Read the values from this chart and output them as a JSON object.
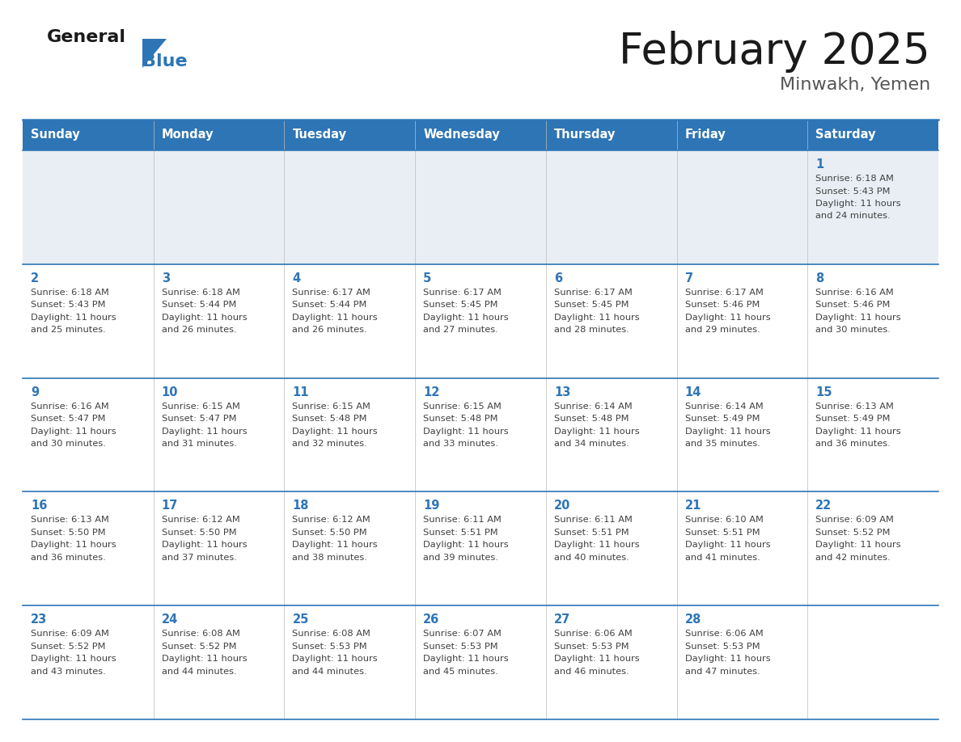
{
  "title": "February 2025",
  "subtitle": "Minwakh, Yemen",
  "days_of_week": [
    "Sunday",
    "Monday",
    "Tuesday",
    "Wednesday",
    "Thursday",
    "Friday",
    "Saturday"
  ],
  "header_bg": "#2E75B6",
  "header_text": "#FFFFFF",
  "row0_bg": "#E8EEF4",
  "row_bg": "#FFFFFF",
  "border_color": "#2E75B6",
  "grid_color": "#2E75B6",
  "day_num_color": "#2E75B6",
  "info_color": "#404040",
  "title_color": "#1a1a1a",
  "subtitle_color": "#555555",
  "logo_general_color": "#1a1a1a",
  "logo_blue_color": "#2E75B6",
  "calendar_data": [
    [
      null,
      null,
      null,
      null,
      null,
      null,
      {
        "day": 1,
        "sunrise": "6:18 AM",
        "sunset": "5:43 PM",
        "daylight": "11 hours and 24 minutes."
      }
    ],
    [
      {
        "day": 2,
        "sunrise": "6:18 AM",
        "sunset": "5:43 PM",
        "daylight": "11 hours and 25 minutes."
      },
      {
        "day": 3,
        "sunrise": "6:18 AM",
        "sunset": "5:44 PM",
        "daylight": "11 hours and 26 minutes."
      },
      {
        "day": 4,
        "sunrise": "6:17 AM",
        "sunset": "5:44 PM",
        "daylight": "11 hours and 26 minutes."
      },
      {
        "day": 5,
        "sunrise": "6:17 AM",
        "sunset": "5:45 PM",
        "daylight": "11 hours and 27 minutes."
      },
      {
        "day": 6,
        "sunrise": "6:17 AM",
        "sunset": "5:45 PM",
        "daylight": "11 hours and 28 minutes."
      },
      {
        "day": 7,
        "sunrise": "6:17 AM",
        "sunset": "5:46 PM",
        "daylight": "11 hours and 29 minutes."
      },
      {
        "day": 8,
        "sunrise": "6:16 AM",
        "sunset": "5:46 PM",
        "daylight": "11 hours and 30 minutes."
      }
    ],
    [
      {
        "day": 9,
        "sunrise": "6:16 AM",
        "sunset": "5:47 PM",
        "daylight": "11 hours and 30 minutes."
      },
      {
        "day": 10,
        "sunrise": "6:15 AM",
        "sunset": "5:47 PM",
        "daylight": "11 hours and 31 minutes."
      },
      {
        "day": 11,
        "sunrise": "6:15 AM",
        "sunset": "5:48 PM",
        "daylight": "11 hours and 32 minutes."
      },
      {
        "day": 12,
        "sunrise": "6:15 AM",
        "sunset": "5:48 PM",
        "daylight": "11 hours and 33 minutes."
      },
      {
        "day": 13,
        "sunrise": "6:14 AM",
        "sunset": "5:48 PM",
        "daylight": "11 hours and 34 minutes."
      },
      {
        "day": 14,
        "sunrise": "6:14 AM",
        "sunset": "5:49 PM",
        "daylight": "11 hours and 35 minutes."
      },
      {
        "day": 15,
        "sunrise": "6:13 AM",
        "sunset": "5:49 PM",
        "daylight": "11 hours and 36 minutes."
      }
    ],
    [
      {
        "day": 16,
        "sunrise": "6:13 AM",
        "sunset": "5:50 PM",
        "daylight": "11 hours and 36 minutes."
      },
      {
        "day": 17,
        "sunrise": "6:12 AM",
        "sunset": "5:50 PM",
        "daylight": "11 hours and 37 minutes."
      },
      {
        "day": 18,
        "sunrise": "6:12 AM",
        "sunset": "5:50 PM",
        "daylight": "11 hours and 38 minutes."
      },
      {
        "day": 19,
        "sunrise": "6:11 AM",
        "sunset": "5:51 PM",
        "daylight": "11 hours and 39 minutes."
      },
      {
        "day": 20,
        "sunrise": "6:11 AM",
        "sunset": "5:51 PM",
        "daylight": "11 hours and 40 minutes."
      },
      {
        "day": 21,
        "sunrise": "6:10 AM",
        "sunset": "5:51 PM",
        "daylight": "11 hours and 41 minutes."
      },
      {
        "day": 22,
        "sunrise": "6:09 AM",
        "sunset": "5:52 PM",
        "daylight": "11 hours and 42 minutes."
      }
    ],
    [
      {
        "day": 23,
        "sunrise": "6:09 AM",
        "sunset": "5:52 PM",
        "daylight": "11 hours and 43 minutes."
      },
      {
        "day": 24,
        "sunrise": "6:08 AM",
        "sunset": "5:52 PM",
        "daylight": "11 hours and 44 minutes."
      },
      {
        "day": 25,
        "sunrise": "6:08 AM",
        "sunset": "5:53 PM",
        "daylight": "11 hours and 44 minutes."
      },
      {
        "day": 26,
        "sunrise": "6:07 AM",
        "sunset": "5:53 PM",
        "daylight": "11 hours and 45 minutes."
      },
      {
        "day": 27,
        "sunrise": "6:06 AM",
        "sunset": "5:53 PM",
        "daylight": "11 hours and 46 minutes."
      },
      {
        "day": 28,
        "sunrise": "6:06 AM",
        "sunset": "5:53 PM",
        "daylight": "11 hours and 47 minutes."
      },
      null
    ]
  ]
}
